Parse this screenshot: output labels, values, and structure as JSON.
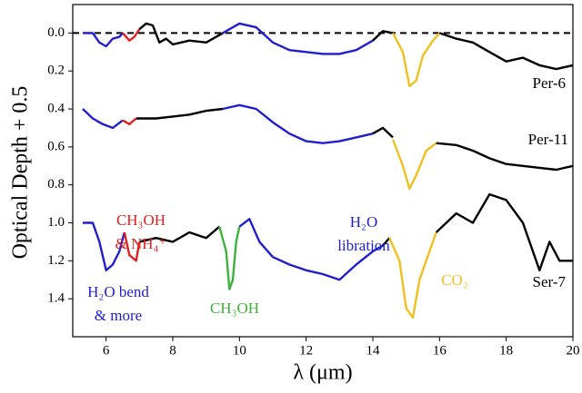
{
  "chart_data": {
    "type": "line",
    "xlabel": "λ (μm)",
    "ylabel": "Optical Depth + 0.5",
    "xlim": [
      5,
      20
    ],
    "xticks": [
      6,
      8,
      10,
      12,
      14,
      16,
      18,
      20
    ],
    "ylim": [
      1.6,
      -0.15
    ],
    "yticks": [
      {
        "value": 0,
        "label": "0.0"
      },
      0.2,
      0.4,
      0.6,
      0.8,
      {
        "value": 1,
        "label": "1.0"
      },
      1.2,
      1.4
    ],
    "hline": {
      "value": 0,
      "color": "#000000",
      "dashed": true
    },
    "series": [
      {
        "color": "#1f1fd0",
        "x": [
          5.3,
          5.6,
          5.8,
          6.0,
          6.2,
          6.4,
          6.5
        ],
        "values": [
          0,
          0,
          0.05,
          0.07,
          0.03,
          0.02,
          0
        ]
      },
      {
        "color": "#e02020",
        "x": [
          6.5,
          6.7,
          6.85,
          7.0
        ],
        "values": [
          0,
          0.04,
          0.02,
          -0.02
        ]
      },
      {
        "color": "#000000",
        "x": [
          7.0,
          7.2,
          7.4,
          7.6,
          7.8,
          8.0,
          8.5,
          9.0,
          9.5
        ],
        "values": [
          -0.02,
          -0.05,
          -0.04,
          0.05,
          0.03,
          0.06,
          0.04,
          0.05,
          0
        ]
      },
      {
        "color": "#1f1fd0",
        "x": [
          9.5,
          10.0,
          10.5,
          11.0,
          11.5,
          12.0,
          12.5,
          13.0,
          13.5,
          14.0
        ],
        "values": [
          0,
          -0.05,
          -0.03,
          0.05,
          0.09,
          0.1,
          0.11,
          0.11,
          0.09,
          0.04
        ]
      },
      {
        "color": "#000000",
        "x": [
          14.0,
          14.3,
          14.6
        ],
        "values": [
          0.04,
          -0.01,
          0
        ]
      },
      {
        "color": "#f0c020",
        "x": [
          14.6,
          14.9,
          15.1,
          15.3,
          15.5,
          15.8,
          16.0
        ],
        "values": [
          0,
          0.1,
          0.28,
          0.25,
          0.12,
          0.04,
          0
        ]
      },
      {
        "color": "#000000",
        "x": [
          16.0,
          16.5,
          17.0,
          17.5,
          18.0,
          18.5,
          19.0,
          19.5,
          20.0
        ],
        "values": [
          0,
          0.03,
          0.05,
          0.1,
          0.15,
          0.13,
          0.17,
          0.19,
          0.17
        ]
      },
      {
        "color": "#1f1fd0",
        "x": [
          5.3,
          5.6,
          5.9,
          6.2,
          6.5
        ],
        "values": [
          0.4,
          0.45,
          0.48,
          0.5,
          0.46
        ]
      },
      {
        "color": "#e02020",
        "x": [
          6.5,
          6.7,
          6.9
        ],
        "values": [
          0.46,
          0.48,
          0.45
        ]
      },
      {
        "color": "#000000",
        "x": [
          6.9,
          7.5,
          8.0,
          8.5,
          9.0,
          9.5
        ],
        "values": [
          0.45,
          0.45,
          0.44,
          0.43,
          0.41,
          0.4
        ]
      },
      {
        "color": "#1f1fd0",
        "x": [
          9.5,
          10.0,
          10.5,
          11.0,
          11.5,
          12.0,
          12.5,
          13.0,
          13.5,
          14.0
        ],
        "values": [
          0.4,
          0.38,
          0.4,
          0.47,
          0.53,
          0.57,
          0.58,
          0.57,
          0.55,
          0.53
        ]
      },
      {
        "color": "#000000",
        "x": [
          14.0,
          14.3,
          14.6
        ],
        "values": [
          0.53,
          0.5,
          0.55
        ]
      },
      {
        "color": "#f0c020",
        "x": [
          14.6,
          14.9,
          15.1,
          15.3,
          15.6,
          15.9
        ],
        "values": [
          0.56,
          0.7,
          0.82,
          0.75,
          0.62,
          0.58
        ]
      },
      {
        "color": "#000000",
        "x": [
          15.9,
          16.5,
          17.0,
          17.5,
          18.0,
          18.5,
          19.0,
          19.5,
          20.0
        ],
        "values": [
          0.58,
          0.59,
          0.62,
          0.66,
          0.69,
          0.7,
          0.71,
          0.72,
          0.7
        ]
      },
      {
        "color": "#1f1fd0",
        "x": [
          5.3,
          5.6,
          5.8,
          6.0,
          6.2,
          6.4,
          6.55
        ],
        "values": [
          1.0,
          1.0,
          1.1,
          1.25,
          1.22,
          1.15,
          1.05
        ]
      },
      {
        "color": "#e02020",
        "x": [
          6.55,
          6.7,
          6.9,
          7.0
        ],
        "values": [
          1.05,
          1.17,
          1.2,
          1.1
        ]
      },
      {
        "color": "#000000",
        "x": [
          7.0,
          7.5,
          8.0,
          8.5,
          9.0,
          9.4
        ],
        "values": [
          1.1,
          1.08,
          1.1,
          1.05,
          1.08,
          1.02
        ]
      },
      {
        "color": "#3cb43c",
        "x": [
          9.4,
          9.6,
          9.7,
          9.8,
          9.9,
          10.0
        ],
        "values": [
          1.02,
          1.15,
          1.35,
          1.3,
          1.1,
          1.02
        ]
      },
      {
        "color": "#1f1fd0",
        "x": [
          10.0,
          10.3,
          10.6,
          11.0,
          11.5,
          12.0,
          12.5,
          13.0,
          13.5,
          14.0,
          14.3
        ],
        "values": [
          1.02,
          0.98,
          1.1,
          1.18,
          1.22,
          1.25,
          1.27,
          1.3,
          1.22,
          1.15,
          1.12
        ]
      },
      {
        "color": "#000000",
        "x": [
          14.3,
          14.5
        ],
        "values": [
          1.12,
          1.08
        ]
      },
      {
        "color": "#f0c020",
        "x": [
          14.5,
          14.8,
          15.0,
          15.2,
          15.4,
          15.7,
          15.9
        ],
        "values": [
          1.08,
          1.2,
          1.45,
          1.5,
          1.3,
          1.15,
          1.05
        ]
      },
      {
        "color": "#000000",
        "x": [
          15.9,
          16.5,
          17.0,
          17.5,
          18.0,
          18.5,
          19.0,
          19.3,
          19.6,
          20.0
        ],
        "values": [
          1.05,
          0.95,
          1.0,
          0.85,
          0.88,
          1.0,
          1.25,
          1.1,
          1.2,
          1.2
        ]
      }
    ],
    "annotations": [
      {
        "text": "Per-6",
        "color": "#000000"
      },
      {
        "text": "Per-11",
        "color": "#000000"
      },
      {
        "text": "Ser-7",
        "color": "#000000"
      },
      {
        "text": "CH₃OH",
        "color": "#e02020"
      },
      {
        "text": "& NH₄⁺",
        "color": "#e02020"
      },
      {
        "text": "H₂O",
        "color": "#1f1fd0"
      },
      {
        "text": "libration",
        "color": "#1f1fd0"
      },
      {
        "text": "H₂O bend",
        "color": "#1f1fd0"
      },
      {
        "text": "& more",
        "color": "#1f1fd0"
      },
      {
        "text": "CH₃OH",
        "color": "#3cb43c"
      },
      {
        "text": "CO₂",
        "color": "#f0c020"
      }
    ]
  }
}
